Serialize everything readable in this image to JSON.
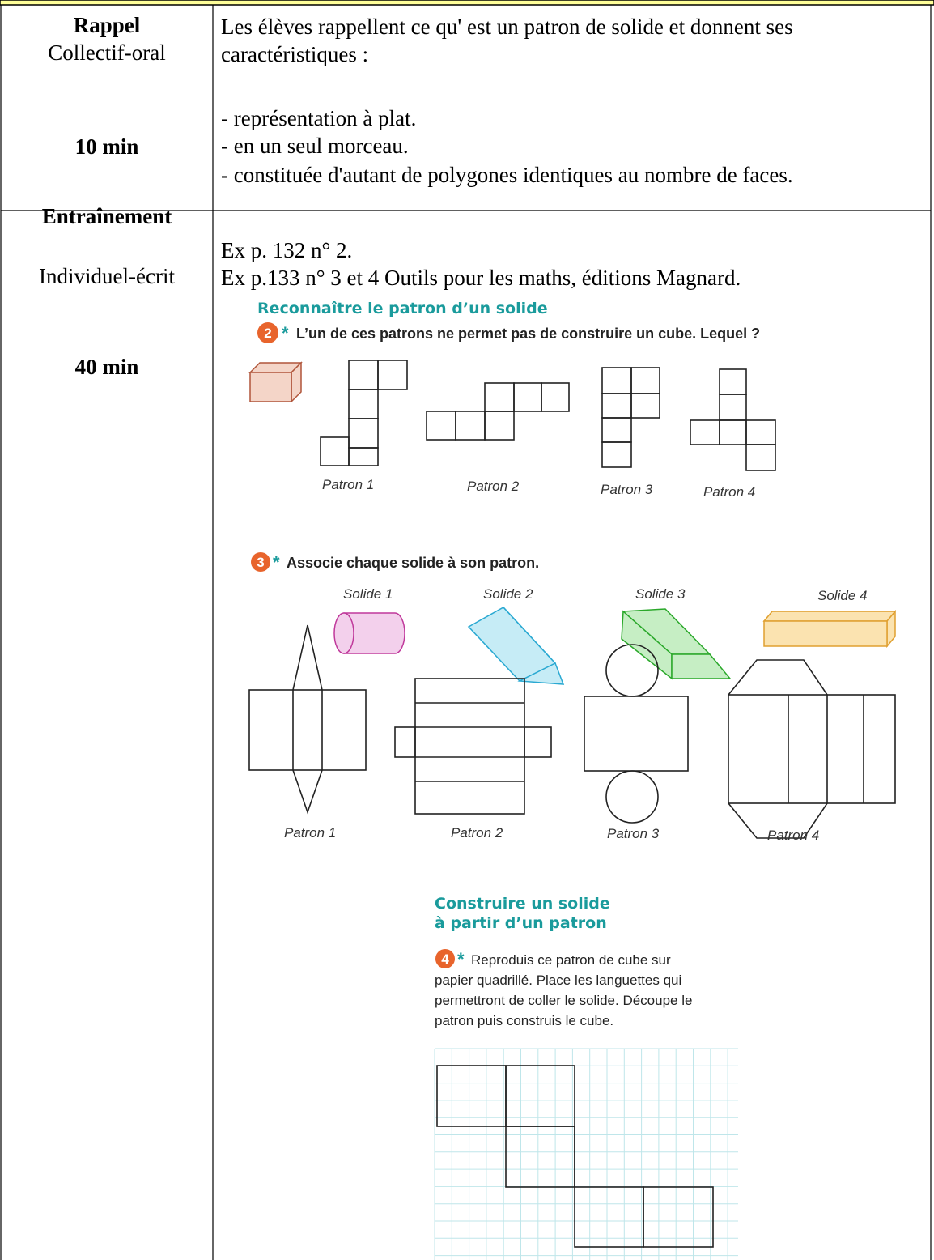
{
  "rows": [
    {
      "activity": "Rappel",
      "mode": "Collectif-oral",
      "duration": "10 min",
      "intro": [
        "Les élèves rappellent ce qu' est un patron de solide et donnent ses",
        "caractéristiques :"
      ],
      "items": [
        "- représentation à plat.",
        "- en un seul morceau.",
        "- constituée d'autant de polygones identiques au nombre de faces."
      ]
    },
    {
      "activity": "Entraînement",
      "mode": "Individuel-écrit",
      "duration": "40 min",
      "refs": [
        "Ex p. 132 n° 2.",
        "Ex p.133 n° 3 et 4  Outils pour les maths, éditions Magnard."
      ]
    }
  ],
  "exercises": {
    "section1_title": "Reconnaître le patron d’un solide",
    "ex2": {
      "number": "2",
      "star": "*",
      "prompt": "L’un de ces patrons ne permet pas de construire un cube. Lequel ?",
      "labels": [
        "Patron 1",
        "Patron 2",
        "Patron 3",
        "Patron 4"
      ]
    },
    "ex3": {
      "number": "3",
      "star": "*",
      "prompt": "Associe chaque solide à son patron.",
      "solids": [
        "Solide 1",
        "Solide 2",
        "Solide 3",
        "Solide 4"
      ],
      "patrons": [
        "Patron 1",
        "Patron 2",
        "Patron 3",
        "Patron 4"
      ]
    },
    "section2_title": [
      "Construire un solide",
      "à partir d’un patron"
    ],
    "ex4": {
      "number": "4",
      "star": "*",
      "lines": [
        "Reproduis ce patron de cube sur",
        "papier quadrillé. Place les languettes qui",
        "permettront de coller le solide. Découpe le",
        "patron puis construis le cube."
      ]
    }
  }
}
